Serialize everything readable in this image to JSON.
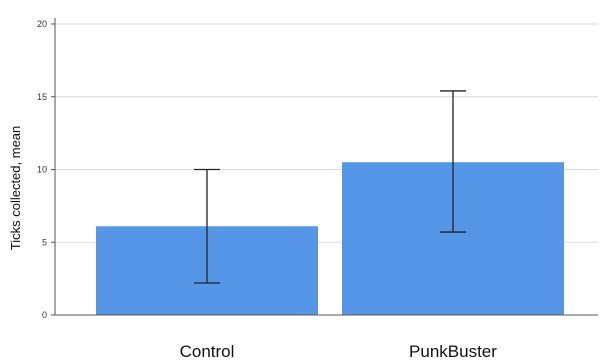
{
  "chart_data": {
    "type": "bar",
    "categories": [
      "Control",
      "PunkBuster"
    ],
    "values": [
      6.1,
      10.5
    ],
    "error_low": [
      2.2,
      5.7
    ],
    "error_high": [
      10.0,
      15.4
    ],
    "ylabel": "Ticks collected, mean",
    "xlabel": "",
    "ylim": [
      0,
      20
    ],
    "yticks": [
      0,
      5,
      10,
      15,
      20
    ],
    "grid": true,
    "colors": {
      "bar": "#5596e6",
      "grid": "#d9d9d9",
      "axis": "#555555",
      "error": "#222222"
    }
  }
}
